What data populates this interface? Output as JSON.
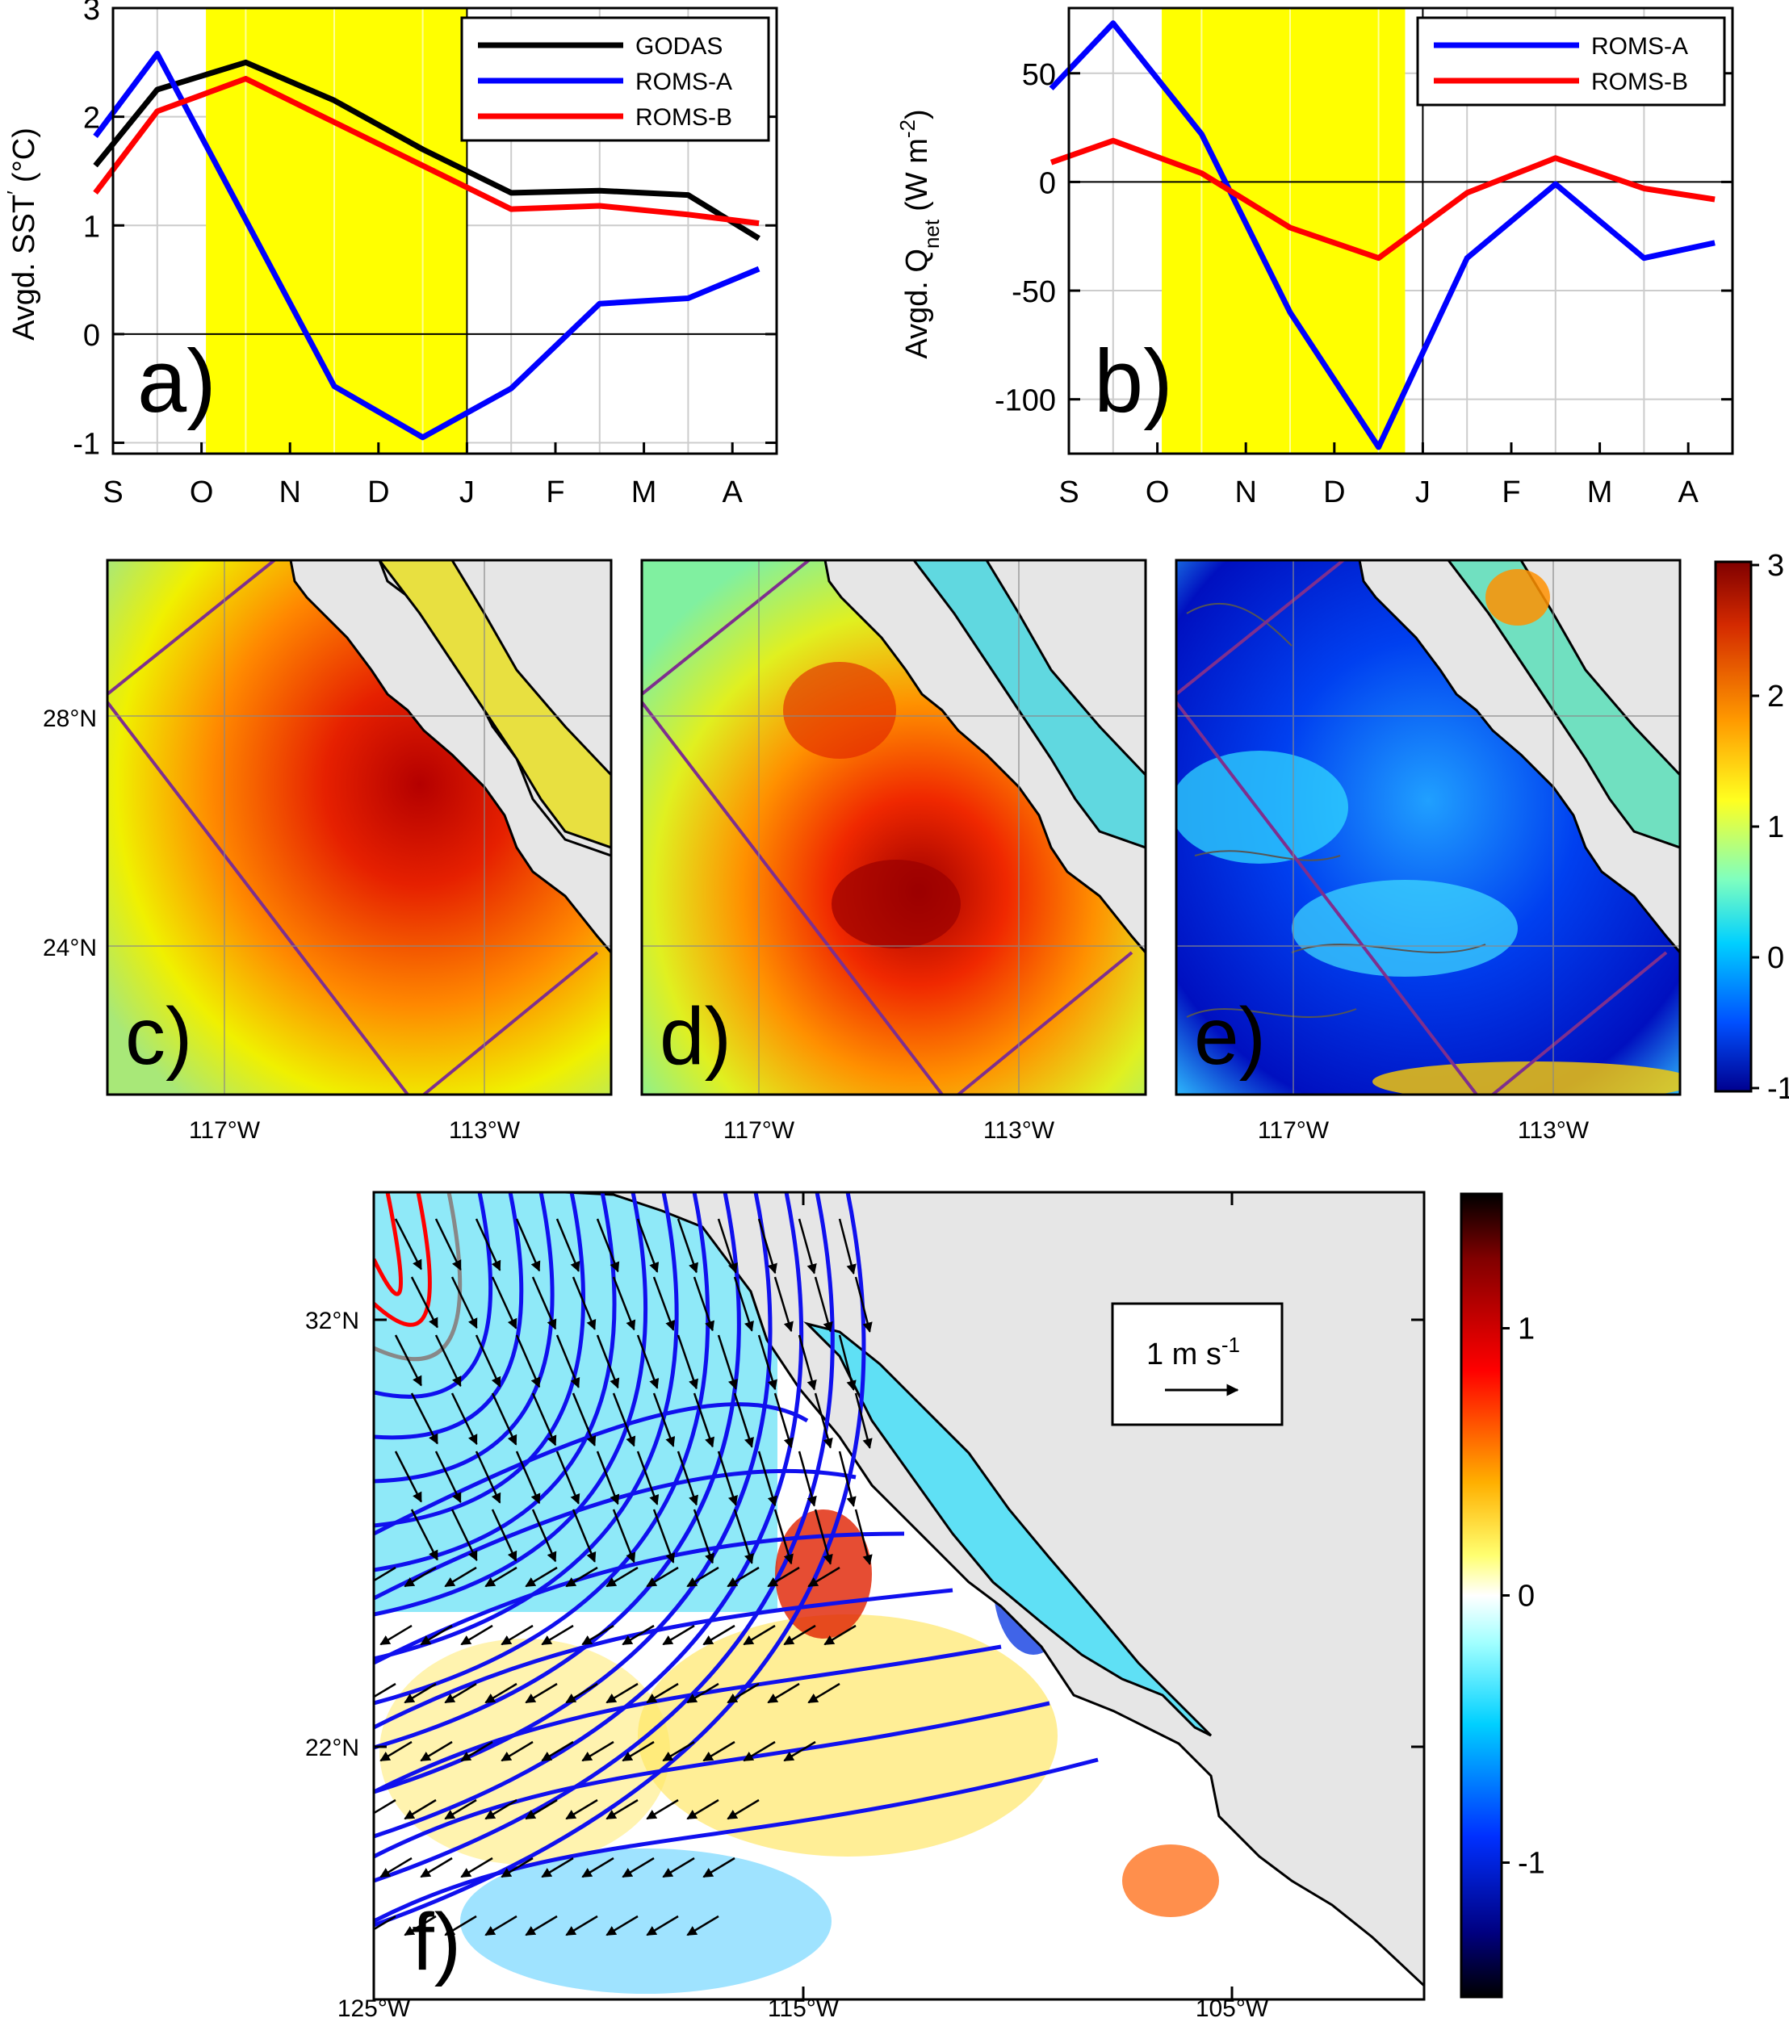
{
  "figure": {
    "months": [
      "S",
      "O",
      "N",
      "D",
      "J",
      "F",
      "M",
      "A"
    ]
  },
  "chart_data": [
    {
      "type": "line",
      "panel_label": "a)",
      "ylabel_main": "Avgd. SST",
      "ylabel_unit": "(°C)",
      "xlim": [
        0,
        7.5
      ],
      "ylim": [
        -1.1,
        3
      ],
      "yticks": [
        -1,
        0,
        1,
        2,
        3
      ],
      "highlight": {
        "x_start": 1.05,
        "x_end": 4.0,
        "color": "#ffff00"
      },
      "vline_x": 4.0,
      "zero_line": true,
      "series": [
        {
          "name": "GODAS",
          "color": "#000000",
          "x": [
            -0.2,
            0.5,
            1.5,
            2.5,
            3.5,
            4.5,
            5.5,
            6.5,
            7.3
          ],
          "y": [
            1.55,
            2.25,
            2.5,
            2.15,
            1.7,
            1.3,
            1.32,
            1.28,
            0.88
          ]
        },
        {
          "name": "ROMS-A",
          "color": "#0000ff",
          "x": [
            -0.2,
            0.5,
            1.5,
            2.5,
            3.5,
            4.5,
            5.5,
            6.5,
            7.3
          ],
          "y": [
            1.82,
            2.58,
            1.05,
            -0.48,
            -0.95,
            -0.5,
            0.28,
            0.33,
            0.6
          ]
        },
        {
          "name": "ROMS-B",
          "color": "#ff0000",
          "x": [
            -0.2,
            0.5,
            1.5,
            2.5,
            3.5,
            4.5,
            5.5,
            6.5,
            7.3
          ],
          "y": [
            1.3,
            2.05,
            2.35,
            1.95,
            1.55,
            1.15,
            1.18,
            1.1,
            1.02
          ]
        }
      ]
    },
    {
      "type": "line",
      "panel_label": "b)",
      "ylabel_main": "Avgd. Q",
      "ylabel_sub": "net",
      "ylabel_unit": "(W m",
      "ylabel_exp": "-2",
      "xlim": [
        0,
        7.5
      ],
      "ylim": [
        -125,
        80
      ],
      "yticks": [
        -100,
        -50,
        0,
        50
      ],
      "highlight": {
        "x_start": 1.05,
        "x_end": 3.8,
        "color": "#ffff00"
      },
      "vline_x": 4.0,
      "zero_line": true,
      "series": [
        {
          "name": "ROMS-A",
          "color": "#0000ff",
          "x": [
            -0.2,
            0.5,
            1.5,
            2.5,
            3.5,
            4.5,
            5.5,
            6.5,
            7.3
          ],
          "y": [
            43,
            73,
            22,
            -60,
            -122,
            -35,
            -1,
            -35,
            -28
          ]
        },
        {
          "name": "ROMS-B",
          "color": "#ff0000",
          "x": [
            -0.2,
            0.5,
            1.5,
            2.5,
            3.5,
            4.5,
            5.5,
            6.5,
            7.3
          ],
          "y": [
            9,
            19,
            4,
            -21,
            -35,
            -5,
            11,
            -3,
            -8
          ]
        }
      ]
    },
    {
      "type": "heatmap",
      "panel_labels": [
        "c)",
        "d)",
        "e)"
      ],
      "xticks": [
        "117°W",
        "113°W"
      ],
      "yticks": [
        "28°N",
        "24°N"
      ],
      "colorbar_ticks": [
        3,
        2,
        1,
        0,
        -1
      ],
      "colorbar_range": [
        -1,
        3
      ],
      "land_color": "#e6e6e6",
      "box_color": "#7e2f8e"
    },
    {
      "type": "heatmap",
      "panel_label": "f)",
      "xticks": [
        "125°W",
        "115°W",
        "105°W"
      ],
      "yticks": [
        "32°N",
        "22°N"
      ],
      "colorbar_ticks": [
        1,
        0,
        -1
      ],
      "colorbar_range": [
        -1.5,
        1.5
      ],
      "scale_label": "1 m s",
      "scale_exp": "-1",
      "land_color": "#e6e6e6"
    }
  ]
}
